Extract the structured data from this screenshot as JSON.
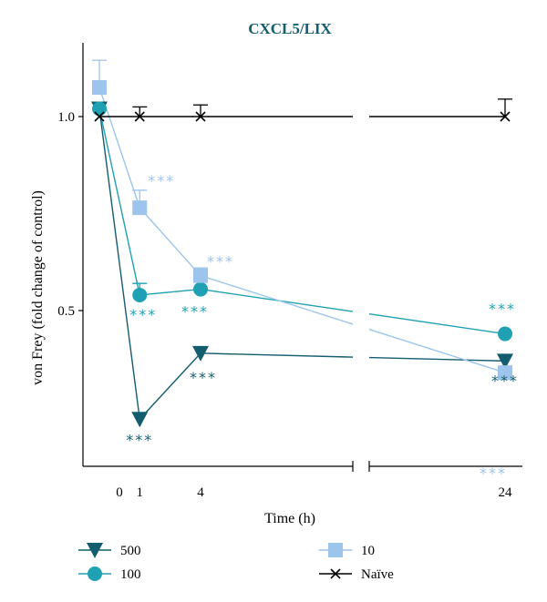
{
  "chart_data": {
    "type": "line",
    "title": "CXCL5/LIX",
    "xlabel": "Time (h)",
    "ylabel": "von Frey (fold change of control)",
    "x_ticks": [
      "0",
      "1",
      "4",
      "24"
    ],
    "y_ticks": [
      "0.5",
      "1.0"
    ],
    "ylim": [
      0.1,
      1.2
    ],
    "x_axis_break": true,
    "legend_position": "bottom",
    "series": [
      {
        "name": "500",
        "color": "#135d6e",
        "marker": "triangle-down",
        "points": [
          {
            "x": -0.5,
            "y": 1.02
          },
          {
            "x": 1,
            "y": 0.22,
            "stars": "***"
          },
          {
            "x": 4,
            "y": 0.39,
            "stars": "***"
          },
          {
            "x": 24,
            "y": 0.37,
            "stars": "***"
          }
        ]
      },
      {
        "name": "100",
        "color": "#1fa1b3",
        "marker": "circle",
        "points": [
          {
            "x": -0.5,
            "y": 1.02
          },
          {
            "x": 1,
            "y": 0.54,
            "err": 0.03,
            "stars": "***"
          },
          {
            "x": 4,
            "y": 0.555,
            "stars": "***"
          },
          {
            "x": 24,
            "y": 0.44,
            "stars": "***"
          }
        ]
      },
      {
        "name": "10",
        "color": "#9cc4ec",
        "marker": "square",
        "points": [
          {
            "x": -0.5,
            "y": 1.075,
            "err": 0.07
          },
          {
            "x": 1,
            "y": 0.765,
            "err": 0.045,
            "stars": "***"
          },
          {
            "x": 4,
            "y": 0.59,
            "err": 0.02,
            "stars": "***"
          },
          {
            "x": 24,
            "y": 0.34,
            "stars": "***"
          }
        ]
      },
      {
        "name": "Naïve",
        "color": "#000000",
        "marker": "x",
        "points": [
          {
            "x": -0.5,
            "y": 1.0
          },
          {
            "x": 1,
            "y": 1.0,
            "err": 0.025
          },
          {
            "x": 4,
            "y": 1.0,
            "err": 0.03
          },
          {
            "x": 24,
            "y": 1.0,
            "err": 0.045
          }
        ]
      }
    ]
  }
}
